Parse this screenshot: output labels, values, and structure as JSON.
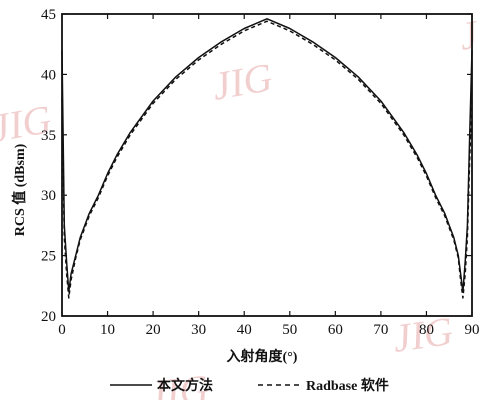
{
  "chart_data": {
    "type": "line",
    "ylabel": "RCS 值 (dBsm)",
    "xlabel": "入射角度(°)",
    "xlim": [
      0,
      90
    ],
    "ylim": [
      20,
      45
    ],
    "xticks": [
      0,
      10,
      20,
      30,
      40,
      50,
      60,
      70,
      80,
      90
    ],
    "yticks": [
      20,
      25,
      30,
      35,
      40,
      45
    ],
    "grid": false,
    "legend_position": "bottom",
    "watermark": "JIG",
    "series": [
      {
        "name": "本文方法",
        "style": "solid",
        "color": "#111111",
        "x": [
          0,
          0.5,
          1,
          1.5,
          2,
          3,
          4,
          5,
          6,
          8,
          10,
          12,
          15,
          20,
          25,
          30,
          35,
          40,
          45,
          50,
          55,
          60,
          65,
          70,
          75,
          78,
          80,
          82,
          84,
          85,
          86,
          87,
          87.5,
          88,
          88.5,
          89,
          89.5,
          90
        ],
        "y": [
          42,
          27.5,
          24.5,
          22,
          23.5,
          25,
          26.5,
          27.5,
          28.5,
          30,
          31.8,
          33.3,
          35.2,
          37.8,
          39.8,
          41.4,
          42.7,
          43.8,
          44.6,
          43.8,
          42.7,
          41.4,
          39.8,
          37.8,
          35.2,
          33.3,
          31.8,
          30,
          28.5,
          27.5,
          26.5,
          25,
          23.5,
          22,
          24.5,
          27.5,
          35,
          42
        ]
      },
      {
        "name": "Radbase 软件",
        "style": "dashed",
        "color": "#111111",
        "x": [
          0,
          0.5,
          1,
          1.5,
          2,
          3,
          4,
          5,
          6,
          8,
          10,
          12,
          15,
          20,
          25,
          30,
          35,
          40,
          45,
          50,
          55,
          60,
          65,
          70,
          75,
          78,
          80,
          82,
          84,
          85,
          86,
          87,
          87.5,
          88,
          88.5,
          89,
          89.5,
          90
        ],
        "y": [
          38,
          26.5,
          23.5,
          21.5,
          23,
          24.8,
          26.3,
          27.3,
          28.3,
          29.8,
          31.6,
          33.1,
          35,
          37.6,
          39.6,
          41.2,
          42.5,
          43.6,
          44.4,
          43.6,
          42.5,
          41.2,
          39.6,
          37.6,
          35,
          33.1,
          31.6,
          29.8,
          28.3,
          27.3,
          26.3,
          24.8,
          23,
          21.5,
          23.5,
          26.5,
          33,
          38
        ]
      }
    ]
  }
}
